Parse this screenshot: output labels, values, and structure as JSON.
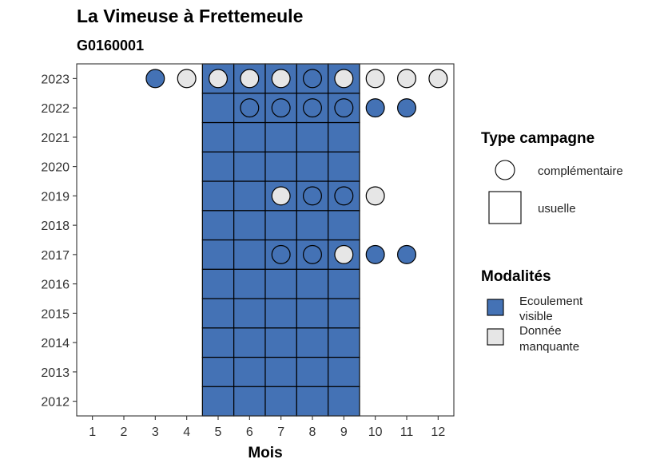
{
  "chart_data": {
    "type": "heatmap",
    "title": "La Vimeuse à Frettemeule",
    "subtitle": "G0160001",
    "xlabel": "Mois",
    "ylabel": "",
    "x_ticks": [
      "1",
      "2",
      "3",
      "4",
      "5",
      "6",
      "7",
      "8",
      "9",
      "10",
      "11",
      "12"
    ],
    "y_ticks": [
      "2012",
      "2013",
      "2014",
      "2015",
      "2016",
      "2017",
      "2018",
      "2019",
      "2020",
      "2021",
      "2022",
      "2023"
    ],
    "xlim": [
      0.5,
      12.5
    ],
    "grid": false,
    "legend_position": "right",
    "colors": {
      "ecoulement_visible": "#4472b5",
      "donnee_manquante": "#e6e6e6"
    },
    "legend": {
      "type_campagne": {
        "title": "Type campagne",
        "items": [
          {
            "label": "complémentaire",
            "shape": "circle"
          },
          {
            "label": "usuelle",
            "shape": "square"
          }
        ]
      },
      "modalites": {
        "title": "Modalités",
        "items": [
          {
            "label_lines": [
              "Ecoulement",
              "visible"
            ],
            "key": "ecoulement_visible"
          },
          {
            "label_lines": [
              "Donnée",
              "manquante"
            ],
            "key": "donnee_manquante"
          }
        ]
      }
    },
    "usuelle": [
      {
        "year": 2012,
        "months": [
          5,
          6,
          7,
          8,
          9
        ],
        "modalite": "ecoulement_visible"
      },
      {
        "year": 2013,
        "months": [
          5,
          6,
          7,
          8,
          9
        ],
        "modalite": "ecoulement_visible"
      },
      {
        "year": 2014,
        "months": [
          5,
          6,
          7,
          8,
          9
        ],
        "modalite": "ecoulement_visible"
      },
      {
        "year": 2015,
        "months": [
          5,
          6,
          7,
          8,
          9
        ],
        "modalite": "ecoulement_visible"
      },
      {
        "year": 2016,
        "months": [
          5,
          6,
          7,
          8,
          9
        ],
        "modalite": "ecoulement_visible"
      },
      {
        "year": 2017,
        "months": [
          5,
          6,
          7,
          8,
          9
        ],
        "modalite": "ecoulement_visible"
      },
      {
        "year": 2018,
        "months": [
          5,
          6,
          7,
          8,
          9
        ],
        "modalite": "ecoulement_visible"
      },
      {
        "year": 2019,
        "months": [
          5,
          6,
          7,
          8,
          9
        ],
        "modalite": "ecoulement_visible"
      },
      {
        "year": 2020,
        "months": [
          5,
          6,
          7,
          8,
          9
        ],
        "modalite": "ecoulement_visible"
      },
      {
        "year": 2021,
        "months": [
          5,
          6,
          7,
          8,
          9
        ],
        "modalite": "ecoulement_visible"
      },
      {
        "year": 2022,
        "months": [
          5,
          6,
          7,
          8,
          9
        ],
        "modalite": "ecoulement_visible"
      },
      {
        "year": 2023,
        "months": [
          5,
          6,
          7,
          8,
          9
        ],
        "modalite": "ecoulement_visible"
      }
    ],
    "complementaire": [
      {
        "year": 2023,
        "month": 3,
        "modalite": "ecoulement_visible"
      },
      {
        "year": 2023,
        "month": 4,
        "modalite": "donnee_manquante"
      },
      {
        "year": 2023,
        "month": 5,
        "modalite": "donnee_manquante"
      },
      {
        "year": 2023,
        "month": 6,
        "modalite": "donnee_manquante"
      },
      {
        "year": 2023,
        "month": 7,
        "modalite": "donnee_manquante"
      },
      {
        "year": 2023,
        "month": 8,
        "modalite": "ecoulement_visible"
      },
      {
        "year": 2023,
        "month": 9,
        "modalite": "donnee_manquante"
      },
      {
        "year": 2023,
        "month": 10,
        "modalite": "donnee_manquante"
      },
      {
        "year": 2023,
        "month": 11,
        "modalite": "donnee_manquante"
      },
      {
        "year": 2023,
        "month": 12,
        "modalite": "donnee_manquante"
      },
      {
        "year": 2022,
        "month": 6,
        "modalite": "ecoulement_visible"
      },
      {
        "year": 2022,
        "month": 7,
        "modalite": "ecoulement_visible"
      },
      {
        "year": 2022,
        "month": 8,
        "modalite": "ecoulement_visible"
      },
      {
        "year": 2022,
        "month": 9,
        "modalite": "ecoulement_visible"
      },
      {
        "year": 2022,
        "month": 10,
        "modalite": "ecoulement_visible"
      },
      {
        "year": 2022,
        "month": 11,
        "modalite": "ecoulement_visible"
      },
      {
        "year": 2019,
        "month": 7,
        "modalite": "donnee_manquante"
      },
      {
        "year": 2019,
        "month": 8,
        "modalite": "ecoulement_visible"
      },
      {
        "year": 2019,
        "month": 9,
        "modalite": "ecoulement_visible"
      },
      {
        "year": 2019,
        "month": 10,
        "modalite": "donnee_manquante"
      },
      {
        "year": 2017,
        "month": 7,
        "modalite": "ecoulement_visible"
      },
      {
        "year": 2017,
        "month": 8,
        "modalite": "ecoulement_visible"
      },
      {
        "year": 2017,
        "month": 9,
        "modalite": "donnee_manquante"
      },
      {
        "year": 2017,
        "month": 10,
        "modalite": "ecoulement_visible"
      },
      {
        "year": 2017,
        "month": 11,
        "modalite": "ecoulement_visible"
      }
    ]
  }
}
